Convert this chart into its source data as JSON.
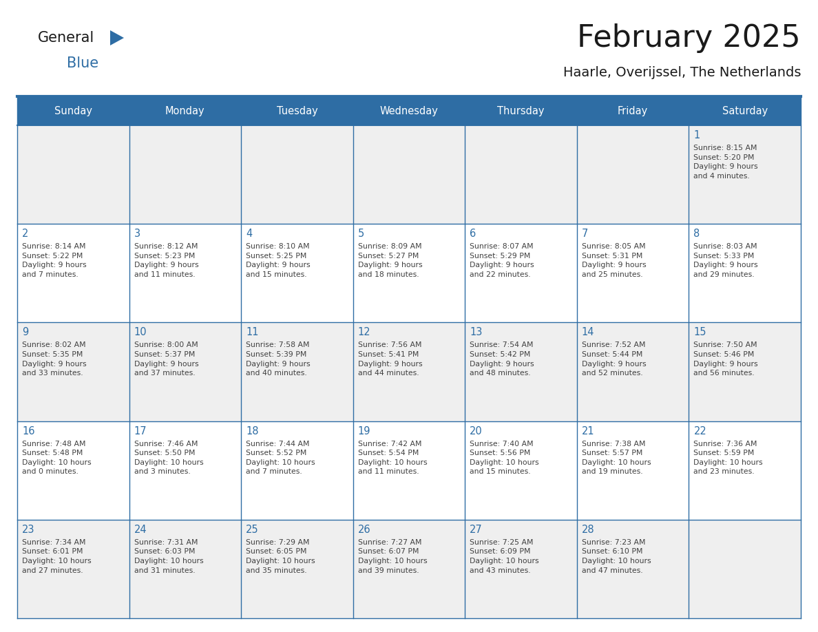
{
  "title": "February 2025",
  "subtitle": "Haarle, Overijssel, The Netherlands",
  "days_of_week": [
    "Sunday",
    "Monday",
    "Tuesday",
    "Wednesday",
    "Thursday",
    "Friday",
    "Saturday"
  ],
  "header_bg": "#2E6DA4",
  "header_text": "#FFFFFF",
  "cell_bg_odd": "#EFEFEF",
  "cell_bg_even": "#FFFFFF",
  "border_color": "#2E6DA4",
  "day_number_color": "#2E6DA4",
  "text_color": "#404040",
  "title_color": "#1A1A1A",
  "logo_general_color": "#1A1A1A",
  "logo_blue_color": "#2E6DA4",
  "logo_triangle_color": "#2E6DA4",
  "weeks": [
    [
      {
        "day": null,
        "info": null
      },
      {
        "day": null,
        "info": null
      },
      {
        "day": null,
        "info": null
      },
      {
        "day": null,
        "info": null
      },
      {
        "day": null,
        "info": null
      },
      {
        "day": null,
        "info": null
      },
      {
        "day": 1,
        "info": "Sunrise: 8:15 AM\nSunset: 5:20 PM\nDaylight: 9 hours\nand 4 minutes."
      }
    ],
    [
      {
        "day": 2,
        "info": "Sunrise: 8:14 AM\nSunset: 5:22 PM\nDaylight: 9 hours\nand 7 minutes."
      },
      {
        "day": 3,
        "info": "Sunrise: 8:12 AM\nSunset: 5:23 PM\nDaylight: 9 hours\nand 11 minutes."
      },
      {
        "day": 4,
        "info": "Sunrise: 8:10 AM\nSunset: 5:25 PM\nDaylight: 9 hours\nand 15 minutes."
      },
      {
        "day": 5,
        "info": "Sunrise: 8:09 AM\nSunset: 5:27 PM\nDaylight: 9 hours\nand 18 minutes."
      },
      {
        "day": 6,
        "info": "Sunrise: 8:07 AM\nSunset: 5:29 PM\nDaylight: 9 hours\nand 22 minutes."
      },
      {
        "day": 7,
        "info": "Sunrise: 8:05 AM\nSunset: 5:31 PM\nDaylight: 9 hours\nand 25 minutes."
      },
      {
        "day": 8,
        "info": "Sunrise: 8:03 AM\nSunset: 5:33 PM\nDaylight: 9 hours\nand 29 minutes."
      }
    ],
    [
      {
        "day": 9,
        "info": "Sunrise: 8:02 AM\nSunset: 5:35 PM\nDaylight: 9 hours\nand 33 minutes."
      },
      {
        "day": 10,
        "info": "Sunrise: 8:00 AM\nSunset: 5:37 PM\nDaylight: 9 hours\nand 37 minutes."
      },
      {
        "day": 11,
        "info": "Sunrise: 7:58 AM\nSunset: 5:39 PM\nDaylight: 9 hours\nand 40 minutes."
      },
      {
        "day": 12,
        "info": "Sunrise: 7:56 AM\nSunset: 5:41 PM\nDaylight: 9 hours\nand 44 minutes."
      },
      {
        "day": 13,
        "info": "Sunrise: 7:54 AM\nSunset: 5:42 PM\nDaylight: 9 hours\nand 48 minutes."
      },
      {
        "day": 14,
        "info": "Sunrise: 7:52 AM\nSunset: 5:44 PM\nDaylight: 9 hours\nand 52 minutes."
      },
      {
        "day": 15,
        "info": "Sunrise: 7:50 AM\nSunset: 5:46 PM\nDaylight: 9 hours\nand 56 minutes."
      }
    ],
    [
      {
        "day": 16,
        "info": "Sunrise: 7:48 AM\nSunset: 5:48 PM\nDaylight: 10 hours\nand 0 minutes."
      },
      {
        "day": 17,
        "info": "Sunrise: 7:46 AM\nSunset: 5:50 PM\nDaylight: 10 hours\nand 3 minutes."
      },
      {
        "day": 18,
        "info": "Sunrise: 7:44 AM\nSunset: 5:52 PM\nDaylight: 10 hours\nand 7 minutes."
      },
      {
        "day": 19,
        "info": "Sunrise: 7:42 AM\nSunset: 5:54 PM\nDaylight: 10 hours\nand 11 minutes."
      },
      {
        "day": 20,
        "info": "Sunrise: 7:40 AM\nSunset: 5:56 PM\nDaylight: 10 hours\nand 15 minutes."
      },
      {
        "day": 21,
        "info": "Sunrise: 7:38 AM\nSunset: 5:57 PM\nDaylight: 10 hours\nand 19 minutes."
      },
      {
        "day": 22,
        "info": "Sunrise: 7:36 AM\nSunset: 5:59 PM\nDaylight: 10 hours\nand 23 minutes."
      }
    ],
    [
      {
        "day": 23,
        "info": "Sunrise: 7:34 AM\nSunset: 6:01 PM\nDaylight: 10 hours\nand 27 minutes."
      },
      {
        "day": 24,
        "info": "Sunrise: 7:31 AM\nSunset: 6:03 PM\nDaylight: 10 hours\nand 31 minutes."
      },
      {
        "day": 25,
        "info": "Sunrise: 7:29 AM\nSunset: 6:05 PM\nDaylight: 10 hours\nand 35 minutes."
      },
      {
        "day": 26,
        "info": "Sunrise: 7:27 AM\nSunset: 6:07 PM\nDaylight: 10 hours\nand 39 minutes."
      },
      {
        "day": 27,
        "info": "Sunrise: 7:25 AM\nSunset: 6:09 PM\nDaylight: 10 hours\nand 43 minutes."
      },
      {
        "day": 28,
        "info": "Sunrise: 7:23 AM\nSunset: 6:10 PM\nDaylight: 10 hours\nand 47 minutes."
      },
      {
        "day": null,
        "info": null
      }
    ]
  ]
}
